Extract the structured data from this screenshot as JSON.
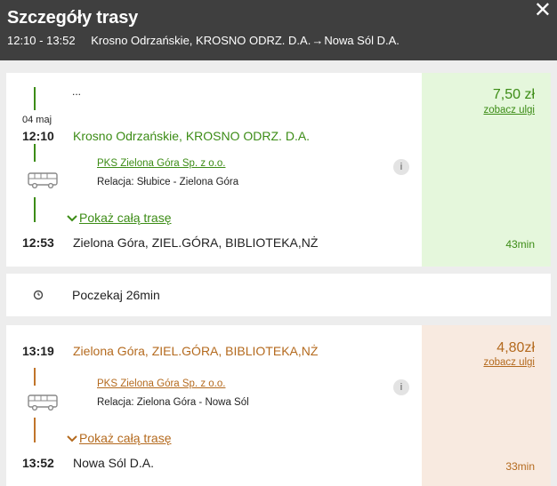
{
  "header": {
    "title": "Szczegóły trasy",
    "time_range": "12:10 - 13:52",
    "from": "Krosno Odrzańskie, KROSNO ODRZ. D.A.",
    "arrow": "→",
    "to": "Nowa Sól D.A.",
    "close": "✕"
  },
  "segments": [
    {
      "color": "#3c8c16",
      "prev": "...",
      "date": "04 maj",
      "dep_time": "12:10",
      "dep_stop": "Krosno Odrzańskie, KROSNO ODRZ. D.A.",
      "carrier": "PKS Zielona Góra Sp. z o.o.",
      "relation": "Relacja: Słubice - Zielona Góra",
      "info": "i",
      "show_route": "Pokaż całą trasę",
      "arr_time": "12:53",
      "arr_stop": "Zielona Góra, ZIEL.GÓRA, BIBLIOTEKA,NŻ",
      "price": "7,50 zł",
      "discounts": "zobacz ulgi",
      "duration": "43min"
    },
    {
      "color": "#c0742a",
      "dep_time": "13:19",
      "dep_stop": "Zielona Góra, ZIEL.GÓRA, BIBLIOTEKA,NŻ",
      "carrier": "PKS Zielona Góra Sp. z o.o.",
      "relation": "Relacja: Zielona Góra - Nowa Sól",
      "info": "i",
      "show_route": "Pokaż całą trasę",
      "arr_time": "13:52",
      "arr_stop": "Nowa Sól D.A.",
      "price": "4,80zł",
      "discounts": "zobacz ulgi",
      "duration": "33min"
    }
  ],
  "wait": {
    "text": "Poczekaj 26min",
    "icon": "clock-icon"
  },
  "icons": {
    "bus": "bus-icon",
    "chevron": "chevron-down-icon"
  }
}
